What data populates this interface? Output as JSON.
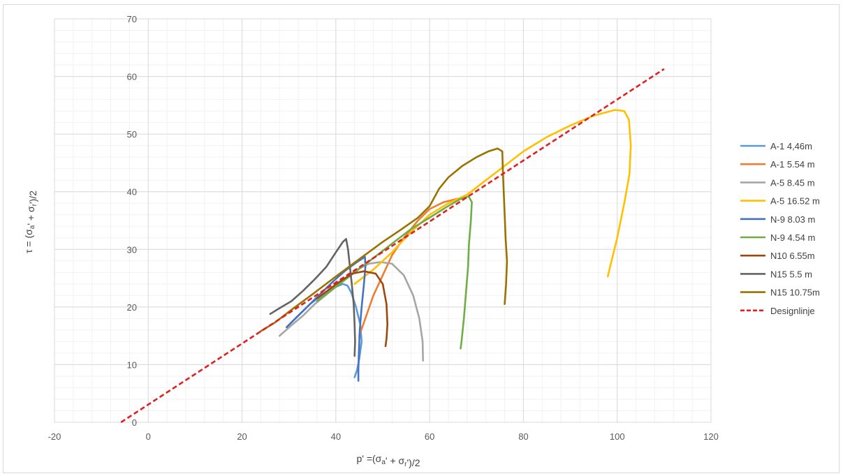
{
  "chart_data": {
    "type": "line",
    "title": "",
    "xlabel": "p' =(σa' + σr')/2",
    "ylabel": "τ = (σa' + σr')/2",
    "xlim": [
      -20,
      120
    ],
    "ylim": [
      0,
      70
    ],
    "x_ticks": [
      "-20",
      "0",
      "20",
      "40",
      "60",
      "80",
      "100",
      "120"
    ],
    "y_ticks": [
      "0",
      "10",
      "20",
      "30",
      "40",
      "50",
      "60",
      "70"
    ],
    "grid": true,
    "minor_grid": true,
    "legend_position": "right",
    "series": [
      {
        "name": "A-1 4,46m",
        "color": "#5b9bd5",
        "dash": "solid",
        "points": [
          [
            29.5,
            16.5
          ],
          [
            32,
            18.5
          ],
          [
            34.5,
            20.5
          ],
          [
            37,
            22
          ],
          [
            39.5,
            23.3
          ],
          [
            41.5,
            24
          ],
          [
            42.5,
            23.7
          ],
          [
            43.3,
            22.5
          ],
          [
            44.3,
            20
          ],
          [
            45.2,
            17
          ],
          [
            45.5,
            14
          ],
          [
            45,
            11
          ],
          [
            44.5,
            9
          ],
          [
            44,
            7.8
          ]
        ]
      },
      {
        "name": "A-1 5.54 m",
        "color": "#ed7d31",
        "dash": "solid",
        "points": [
          [
            45,
            15
          ],
          [
            46.5,
            18.5
          ],
          [
            48,
            22
          ],
          [
            50,
            25.5
          ],
          [
            52,
            29
          ],
          [
            54.5,
            32
          ],
          [
            57.5,
            35
          ],
          [
            60,
            37
          ],
          [
            63,
            38.2
          ],
          [
            66,
            38.8
          ],
          [
            67.5,
            39
          ]
        ]
      },
      {
        "name": "A-5 8.45 m",
        "color": "#a5a5a5",
        "dash": "solid",
        "points": [
          [
            28,
            15
          ],
          [
            30.5,
            16.8
          ],
          [
            33,
            18.5
          ],
          [
            35.5,
            20.5
          ],
          [
            38.5,
            22.5
          ],
          [
            41.5,
            24.5
          ],
          [
            44.5,
            26.5
          ],
          [
            47,
            27.5
          ],
          [
            49.5,
            27.8
          ],
          [
            52,
            27.5
          ],
          [
            54.5,
            25.5
          ],
          [
            56.5,
            22
          ],
          [
            57.8,
            18
          ],
          [
            58.5,
            14
          ],
          [
            58.6,
            10.7
          ]
        ]
      },
      {
        "name": "A-5 16.52 m",
        "color": "#ffc000",
        "dash": "solid",
        "points": [
          [
            44,
            24
          ],
          [
            48,
            26.5
          ],
          [
            52,
            29.5
          ],
          [
            56,
            33
          ],
          [
            60,
            36
          ],
          [
            64,
            38
          ],
          [
            68,
            39.5
          ],
          [
            72,
            42
          ],
          [
            76,
            44.5
          ],
          [
            80,
            47
          ],
          [
            85,
            49.5
          ],
          [
            90,
            51.5
          ],
          [
            95,
            53.2
          ],
          [
            99.5,
            54.2
          ],
          [
            101.5,
            54
          ],
          [
            102.5,
            52.5
          ],
          [
            102.9,
            48
          ],
          [
            102.6,
            43
          ],
          [
            101.5,
            38
          ],
          [
            100,
            32
          ],
          [
            98.5,
            27
          ],
          [
            98,
            25.3
          ]
        ]
      },
      {
        "name": "N-9 8.03 m",
        "color": "#4472c4",
        "dash": "solid",
        "points": [
          [
            29.5,
            16.5
          ],
          [
            32,
            18.5
          ],
          [
            34.5,
            20.5
          ],
          [
            37,
            22.5
          ],
          [
            39.5,
            24.5
          ],
          [
            42,
            26.3
          ],
          [
            44.5,
            27.8
          ],
          [
            46.2,
            28.7
          ],
          [
            46.3,
            27
          ],
          [
            46,
            24
          ],
          [
            45.5,
            20
          ],
          [
            45.1,
            16
          ],
          [
            44.9,
            12
          ],
          [
            44.8,
            9
          ],
          [
            44.8,
            7.2
          ]
        ]
      },
      {
        "name": "N-9 4.54 m",
        "color": "#70ad47",
        "dash": "solid",
        "points": [
          [
            36,
            21
          ],
          [
            40,
            23.5
          ],
          [
            44,
            26
          ],
          [
            48,
            28.5
          ],
          [
            52,
            31
          ],
          [
            56,
            33.5
          ],
          [
            60,
            35.5
          ],
          [
            63.5,
            37.3
          ],
          [
            66.5,
            38.7
          ],
          [
            68.3,
            39.2
          ],
          [
            69,
            38.2
          ],
          [
            68.8,
            35
          ],
          [
            68.4,
            31
          ],
          [
            68.2,
            27
          ],
          [
            67.8,
            23
          ],
          [
            67.3,
            18
          ],
          [
            66.8,
            14
          ],
          [
            66.6,
            12.8
          ]
        ]
      },
      {
        "name": "N10 6.55m",
        "color": "#9e480e",
        "dash": "solid",
        "points": [
          [
            36,
            21.5
          ],
          [
            38.5,
            23
          ],
          [
            41,
            24.5
          ],
          [
            43.5,
            25.8
          ],
          [
            46,
            26.2
          ],
          [
            48.5,
            25.8
          ],
          [
            50,
            24
          ],
          [
            50.8,
            20.5
          ],
          [
            51,
            17
          ],
          [
            50.8,
            14.5
          ],
          [
            50.6,
            13.2
          ]
        ]
      },
      {
        "name": "N15 5.5 m",
        "color": "#636363",
        "dash": "solid",
        "points": [
          [
            26,
            18.8
          ],
          [
            28,
            19.8
          ],
          [
            30.5,
            21
          ],
          [
            33,
            22.8
          ],
          [
            35.5,
            24.8
          ],
          [
            38,
            27
          ],
          [
            40,
            29.5
          ],
          [
            41.5,
            31.3
          ],
          [
            42.2,
            31.8
          ],
          [
            42.6,
            30
          ],
          [
            43,
            27
          ],
          [
            43.4,
            24
          ],
          [
            43.8,
            20.5
          ],
          [
            44,
            17
          ],
          [
            44.1,
            14
          ],
          [
            44,
            11.5
          ]
        ]
      },
      {
        "name": "N15 10.75m",
        "color": "#997300",
        "dash": "solid",
        "points": [
          [
            24,
            15.8
          ],
          [
            27,
            17.3
          ],
          [
            31,
            19.8
          ],
          [
            35,
            22.2
          ],
          [
            40,
            25.3
          ],
          [
            45,
            28.3
          ],
          [
            50,
            31.3
          ],
          [
            54,
            33.5
          ],
          [
            57.5,
            35.5
          ],
          [
            60,
            37.5
          ],
          [
            62,
            40.5
          ],
          [
            64,
            42.5
          ],
          [
            67,
            44.5
          ],
          [
            70,
            46
          ],
          [
            72.5,
            47
          ],
          [
            74.5,
            47.5
          ],
          [
            75.5,
            47
          ],
          [
            75.6,
            44
          ],
          [
            75.8,
            40
          ],
          [
            76,
            36
          ],
          [
            76.2,
            32
          ],
          [
            76.5,
            28
          ],
          [
            76.3,
            24
          ],
          [
            76,
            20.5
          ]
        ]
      },
      {
        "name": "Designlinje",
        "color": "#e02020",
        "dash": "dashed",
        "points": [
          [
            -5.8,
            0
          ],
          [
            110,
            61.3
          ]
        ]
      }
    ]
  }
}
